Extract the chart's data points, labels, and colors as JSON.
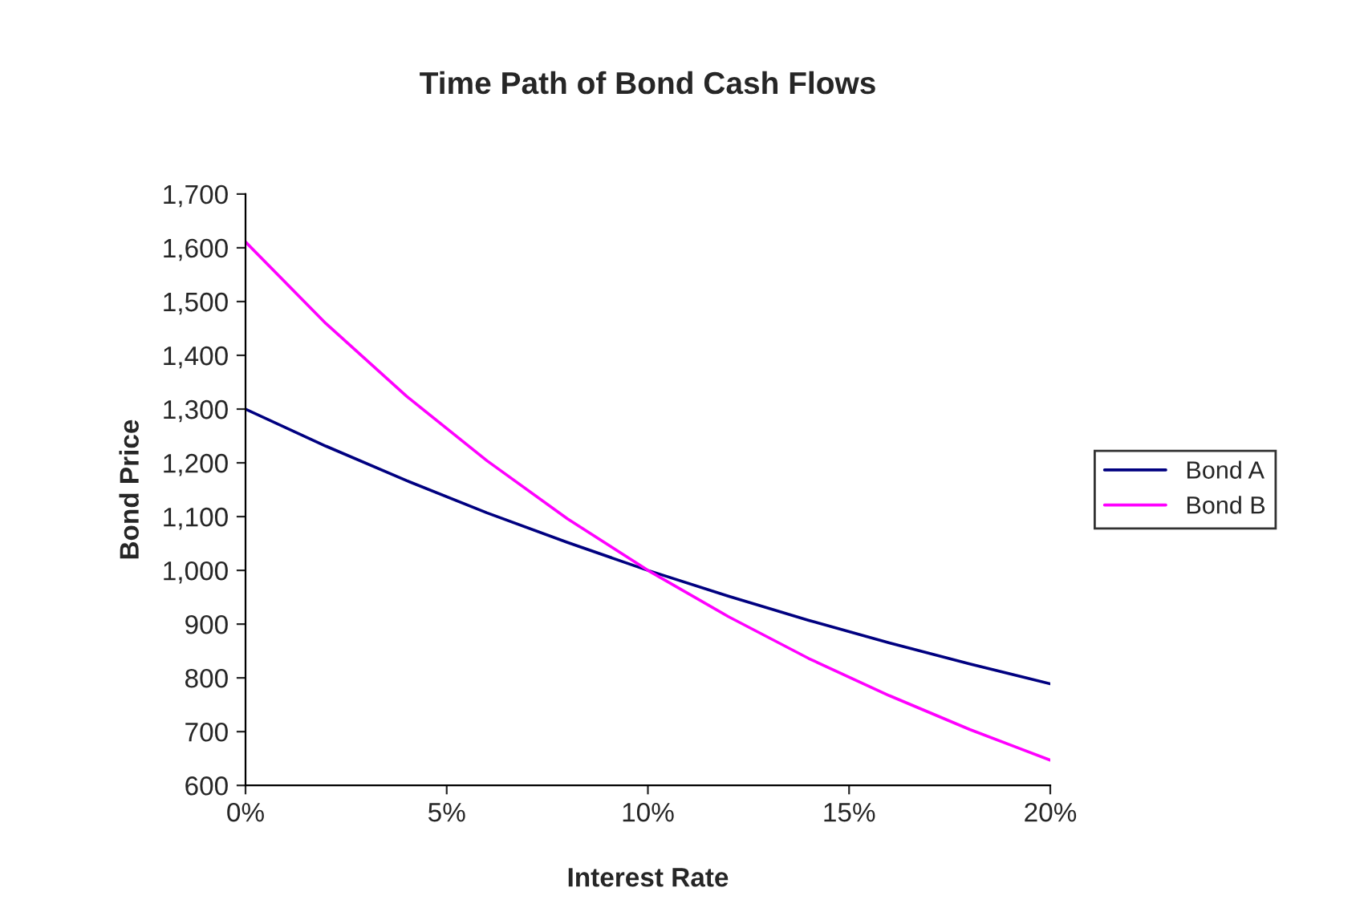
{
  "chart_data": {
    "type": "line",
    "title": "Time Path of Bond Cash Flows",
    "xlabel": "Interest Rate",
    "ylabel": "Bond Price",
    "x": [
      0,
      2,
      4,
      6,
      8,
      10,
      12,
      14,
      16,
      18,
      20
    ],
    "series": [
      {
        "name": "Bond A",
        "color": "#000080",
        "values": [
          1300,
          1231,
          1167,
          1107,
          1052,
          1000,
          952,
          907,
          865,
          826,
          789
        ]
      },
      {
        "name": "Bond B",
        "color": "#ff00ff",
        "values": [
          1611,
          1459,
          1324,
          1204,
          1096,
          1000,
          914,
          836,
          767,
          704,
          647
        ]
      }
    ],
    "xlim": [
      0,
      20
    ],
    "xticks": [
      {
        "value": 0,
        "label": "0%"
      },
      {
        "value": 5,
        "label": "5%"
      },
      {
        "value": 10,
        "label": "10%"
      },
      {
        "value": 15,
        "label": "15%"
      },
      {
        "value": 20,
        "label": "20%"
      }
    ],
    "ylim": [
      600,
      1700
    ],
    "yticks": [
      600,
      700,
      800,
      900,
      {
        "value": 1000,
        "label": "1,000"
      },
      {
        "value": 1100,
        "label": "1,100"
      },
      {
        "value": 1200,
        "label": "1,200"
      },
      {
        "value": 1300,
        "label": "1,300"
      },
      {
        "value": 1400,
        "label": "1,400"
      },
      {
        "value": 1500,
        "label": "1,500"
      },
      {
        "value": 1600,
        "label": "1,600"
      },
      {
        "value": 1700,
        "label": "1,700"
      }
    ],
    "grid": false,
    "legend": "right",
    "marker": "none",
    "line_style": "solid"
  }
}
